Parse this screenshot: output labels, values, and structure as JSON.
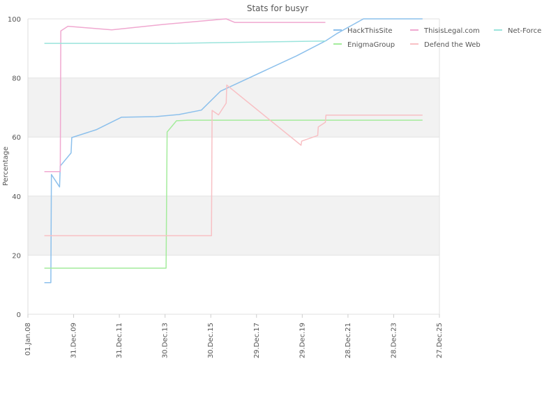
{
  "chart_data": {
    "type": "line",
    "title": "Stats for busyr",
    "ylabel": "Percentage",
    "xlabel": "",
    "ylim": [
      0,
      100
    ],
    "yticks": [
      0,
      20,
      40,
      60,
      80,
      100
    ],
    "xlim": [
      "2008-01-01",
      "2025-12-27"
    ],
    "xticks": [
      {
        "date": "2008-01-01",
        "label": "01.Jan.08"
      },
      {
        "date": "2009-12-31",
        "label": "31.Dec.09"
      },
      {
        "date": "2011-12-31",
        "label": "31.Dec.11"
      },
      {
        "date": "2013-12-30",
        "label": "30.Dec.13"
      },
      {
        "date": "2015-12-30",
        "label": "30.Dec.15"
      },
      {
        "date": "2017-12-29",
        "label": "29.Dec.17"
      },
      {
        "date": "2019-12-29",
        "label": "29.Dec.19"
      },
      {
        "date": "2021-12-28",
        "label": "28.Dec.21"
      },
      {
        "date": "2023-12-28",
        "label": "28.Dec.23"
      },
      {
        "date": "2025-12-27",
        "label": "27.Dec.25"
      }
    ],
    "grid": true,
    "legend_position": "top-right",
    "series": [
      {
        "name": "HackThisSite",
        "color": "#8cc0ec",
        "points": [
          [
            "2008-09-20",
            10.7
          ],
          [
            "2009-01-01",
            10.7
          ],
          [
            "2009-01-10",
            47.3
          ],
          [
            "2009-05-20",
            43.1
          ],
          [
            "2009-06-01",
            50.2
          ],
          [
            "2009-11-20",
            54.6
          ],
          [
            "2009-12-01",
            59.8
          ],
          [
            "2011-01-01",
            62.5
          ],
          [
            "2012-02-01",
            66.7
          ],
          [
            "2013-08-01",
            66.9
          ],
          [
            "2014-08-01",
            67.6
          ],
          [
            "2015-08-01",
            69.1
          ],
          [
            "2016-06-01",
            75.5
          ],
          [
            "2019-10-01",
            87.5
          ],
          [
            "2021-01-01",
            92.5
          ],
          [
            "2021-07-01",
            95.0
          ],
          [
            "2022-09-01",
            100.0
          ],
          [
            "2025-04-01",
            100.0
          ]
        ]
      },
      {
        "name": "ThisisLegal.com",
        "color": "#f0a8d0",
        "points": [
          [
            "2008-09-20",
            48.3
          ],
          [
            "2009-06-01",
            48.3
          ],
          [
            "2009-06-10",
            95.9
          ],
          [
            "2009-10-01",
            97.5
          ],
          [
            "2011-09-01",
            96.3
          ],
          [
            "2013-12-01",
            98.1
          ],
          [
            "2016-09-01",
            100.0
          ],
          [
            "2017-01-15",
            98.8
          ],
          [
            "2021-01-01",
            98.8
          ]
        ]
      },
      {
        "name": "Net-Force",
        "color": "#9ae4dc",
        "points": [
          [
            "2008-09-20",
            91.7
          ],
          [
            "2014-06-01",
            91.7
          ],
          [
            "2021-01-01",
            92.5
          ]
        ]
      },
      {
        "name": "EnigmaGroup",
        "color": "#a4ec9c",
        "points": [
          [
            "2008-09-20",
            15.6
          ],
          [
            "2014-01-15",
            15.6
          ],
          [
            "2014-02-01",
            61.7
          ],
          [
            "2014-07-01",
            65.5
          ],
          [
            "2015-01-01",
            65.7
          ],
          [
            "2025-04-01",
            65.7
          ]
        ]
      },
      {
        "name": "Defend the Web",
        "color": "#f8c0c4",
        "points": [
          [
            "2008-09-20",
            26.6
          ],
          [
            "2016-01-10",
            26.6
          ],
          [
            "2016-01-20",
            69.0
          ],
          [
            "2016-05-01",
            67.5
          ],
          [
            "2016-09-01",
            71.5
          ],
          [
            "2016-09-10",
            77.6
          ],
          [
            "2019-12-10",
            57.2
          ],
          [
            "2019-12-20",
            58.6
          ],
          [
            "2020-09-01",
            60.5
          ],
          [
            "2020-09-10",
            63.4
          ],
          [
            "2021-01-01",
            65.0
          ],
          [
            "2021-01-10",
            67.4
          ],
          [
            "2025-04-01",
            67.4
          ]
        ]
      }
    ]
  }
}
